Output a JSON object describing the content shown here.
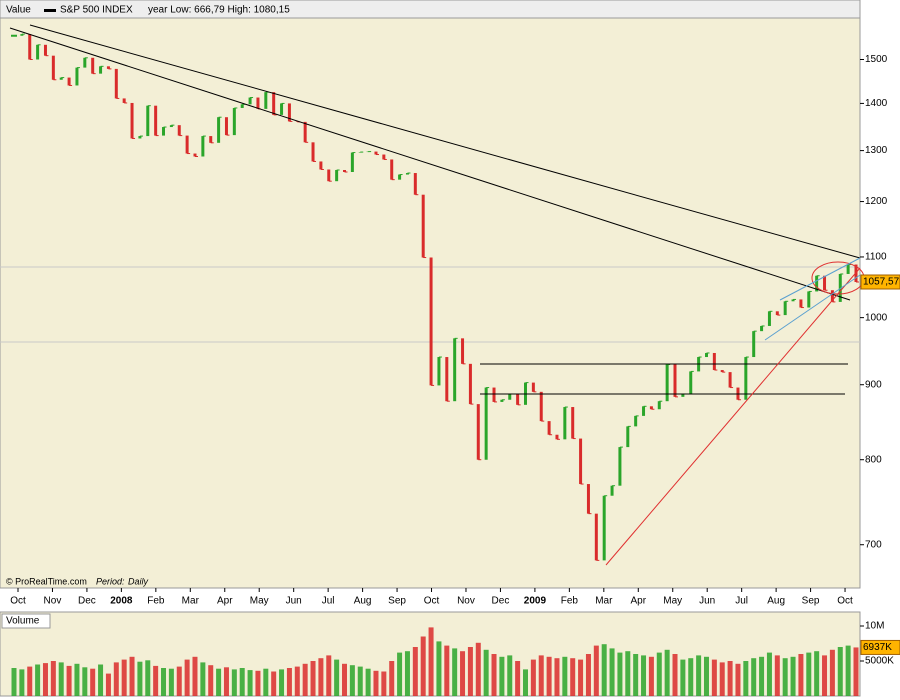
{
  "header": {
    "label": "Value",
    "series_name": "S&P 500 INDEX",
    "range": "year Low: 666,79 High: 1080,15"
  },
  "footer": {
    "source": "© ProRealTime.com",
    "period_label": "Period:",
    "period": "Daily"
  },
  "chart_data": [
    {
      "type": "stock",
      "month_labels": [
        "Oct",
        "Nov",
        "Dec",
        "2008",
        "Feb",
        "Mar",
        "Apr",
        "May",
        "Jun",
        "Jul",
        "Aug",
        "Sep",
        "Oct",
        "Nov",
        "Dec",
        "2009",
        "Feb",
        "Mar",
        "Apr",
        "May",
        "Jun",
        "Jul",
        "Aug",
        "Sep",
        "Oct"
      ],
      "values": [
        1557,
        1561,
        1500,
        1535,
        1509,
        1453,
        1458,
        1440,
        1481,
        1504,
        1467,
        1484,
        1478,
        1411,
        1401,
        1325,
        1330,
        1395,
        1331,
        1349,
        1353,
        1331,
        1294,
        1288,
        1330,
        1316,
        1370,
        1332,
        1390,
        1398,
        1413,
        1388,
        1425,
        1375,
        1400,
        1361,
        1360,
        1317,
        1278,
        1262,
        1239,
        1261,
        1257,
        1296,
        1297,
        1298,
        1292,
        1282,
        1242,
        1252,
        1255,
        1213,
        1099,
        899,
        940,
        877,
        968,
        930,
        873,
        800,
        896,
        876,
        879,
        887,
        872,
        903,
        890,
        850,
        832,
        826,
        869,
        827,
        770,
        735,
        683,
        756,
        768,
        816,
        843,
        857,
        870,
        866,
        877,
        929,
        883,
        887,
        919,
        940,
        946,
        921,
        918,
        896,
        879,
        940,
        979,
        987,
        1010,
        1004,
        1026,
        1029,
        1016,
        1042,
        1068,
        1044,
        1025,
        1071,
        1087,
        1057.57
      ],
      "last_value_label": "1057,57",
      "ylim": [
        654,
        1601
      ],
      "yticks": [
        700,
        800,
        900,
        1000,
        1100,
        1200,
        1300,
        1400,
        1500
      ],
      "log_scale": true,
      "up_color": "#2aa52a",
      "down_color": "#d92b2b"
    },
    {
      "type": "bar",
      "title": "Volume",
      "values": [
        4000,
        3800,
        4200,
        4500,
        4700,
        5000,
        4800,
        4300,
        4600,
        4100,
        3900,
        4500,
        3200,
        4800,
        5200,
        5600,
        4900,
        5100,
        4300,
        4000,
        3900,
        4200,
        5200,
        5600,
        4800,
        4400,
        3900,
        4100,
        3800,
        4000,
        3700,
        3600,
        3900,
        3500,
        3800,
        4000,
        4200,
        4600,
        5000,
        5400,
        5800,
        5200,
        4600,
        4400,
        4200,
        3900,
        3600,
        3500,
        5000,
        6200,
        6400,
        7000,
        8500,
        9800,
        7800,
        7200,
        6800,
        6400,
        7000,
        7600,
        6600,
        6000,
        5600,
        5800,
        5000,
        3800,
        5200,
        5800,
        5600,
        5400,
        5600,
        5400,
        5200,
        6000,
        7200,
        7400,
        6800,
        6200,
        6400,
        6000,
        5800,
        5600,
        6200,
        6600,
        6000,
        5200,
        5400,
        5800,
        5600,
        5200,
        4800,
        5000,
        4600,
        5000,
        5400,
        5600,
        6200,
        5800,
        5400,
        5600,
        6000,
        6200,
        6400,
        5800,
        6600,
        7000,
        7200,
        6937
      ],
      "last_value_label": "6937K",
      "ylim": [
        0,
        12000
      ],
      "yticks": [
        {
          "value": 5000,
          "label": "5000K"
        },
        {
          "value": 10000,
          "label": "10M"
        }
      ]
    }
  ]
}
